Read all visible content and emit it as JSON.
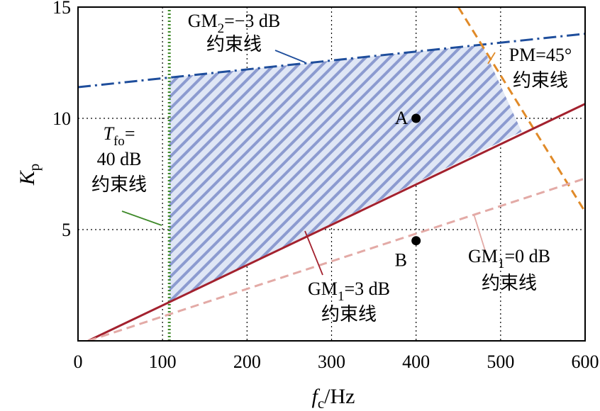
{
  "chart_data": {
    "type": "line",
    "xlim": [
      0,
      600
    ],
    "ylim": [
      0,
      15
    ],
    "x_ticks": [
      0,
      100,
      200,
      300,
      400,
      500,
      600
    ],
    "y_ticks": [
      5,
      10,
      15
    ],
    "grid": true,
    "xlabel": {
      "main": "f",
      "sub": "c",
      "unit": "/Hz"
    },
    "ylabel": {
      "main": "K",
      "sub": "p"
    },
    "series": [
      {
        "label_lines": [
          [
            "GM",
            "2",
            "=−3 dB"
          ],
          [
            "约束线"
          ]
        ],
        "x": [
          0,
          600
        ],
        "y": [
          11.4,
          13.8
        ],
        "color": "#1f4e9c",
        "style": "dashdot"
      },
      {
        "label_lines": [
          [
            "PM=45°"
          ],
          [
            "约束线"
          ]
        ],
        "x": [
          450,
          600
        ],
        "y": [
          15.0,
          5.8
        ],
        "color": "#e08a28",
        "style": "dashed"
      },
      {
        "label_lines": [
          [
            "T",
            "fo",
            "="
          ],
          [
            "40 dB"
          ],
          [
            "约束线"
          ]
        ],
        "x": [
          108,
          108
        ],
        "y": [
          0,
          15
        ],
        "color": "#3f8a2a",
        "style": "dotted"
      },
      {
        "label_lines": [
          [
            "GM",
            "1",
            "=3 dB"
          ],
          [
            "约束线"
          ]
        ],
        "x": [
          12,
          600
        ],
        "y": [
          0,
          10.65
        ],
        "color": "#a3212e",
        "style": "solid"
      },
      {
        "label_lines": [
          [
            "GM",
            "1",
            "=0 dB"
          ],
          [
            "约束线"
          ]
        ],
        "x": [
          12,
          600
        ],
        "y": [
          0,
          7.3
        ],
        "color": "#e3aaa6",
        "style": "dashed"
      }
    ],
    "feasible_region": [
      [
        108,
        11.83
      ],
      [
        478,
        13.3
      ],
      [
        525,
        9.4
      ],
      [
        108,
        1.75
      ]
    ],
    "points": [
      {
        "label": "A",
        "x": 400,
        "y": 10
      },
      {
        "label": "B",
        "x": 400,
        "y": 4.5
      }
    ]
  }
}
